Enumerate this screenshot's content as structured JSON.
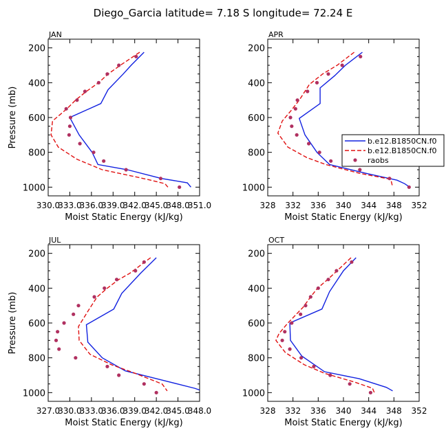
{
  "figure": {
    "title": "Diego_Garcia   latitude= 7.18 S longitude= 72.24 E"
  },
  "legend": {
    "entries": [
      {
        "label": "b.e12.B1850CN.f0",
        "style": "solid",
        "color": "#1020e0"
      },
      {
        "label": "b.e12.B1850CN.f0",
        "style": "dashed",
        "color": "#e01010"
      },
      {
        "label": "raobs",
        "style": "dot",
        "color": "#b03060"
      }
    ]
  },
  "chart_data": [
    {
      "type": "line",
      "panel_label": "JAN",
      "xlabel": "Moist Static Energy (kJ/kg)",
      "ylabel": "Pressure (mb)",
      "xlim": [
        330.0,
        351.0
      ],
      "ylim": [
        1000,
        200
      ],
      "xticks": [
        330.0,
        333.0,
        336.0,
        339.0,
        342.0,
        345.0,
        348.0,
        351.0
      ],
      "xticklabels": [
        "330.0",
        "333.0",
        "336.0",
        "339.0",
        "342.0",
        "345.0",
        "348.0",
        "351.0"
      ],
      "yticks": [
        200,
        400,
        600,
        800,
        1000
      ],
      "series": [
        {
          "name": "b.e12.B1850CN.f0",
          "style": "solid",
          "color": "#1020e0",
          "points": [
            [
              343.3,
              225
            ],
            [
              341.5,
              300
            ],
            [
              340.4,
              350
            ],
            [
              338.3,
              440
            ],
            [
              337.3,
              520
            ],
            [
              333.0,
              600
            ],
            [
              334.3,
              700
            ],
            [
              336.1,
              800
            ],
            [
              336.9,
              870
            ],
            [
              341.0,
              900
            ],
            [
              345.7,
              950
            ],
            [
              349.3,
              975
            ],
            [
              349.8,
              1000
            ]
          ]
        },
        {
          "name": "b.e12.B1850CN.f0",
          "style": "dashed",
          "color": "#e01010",
          "points": [
            [
              342.7,
              225
            ],
            [
              340.0,
              300
            ],
            [
              338.3,
              350
            ],
            [
              337.0,
              400
            ],
            [
              335.3,
              450
            ],
            [
              333.8,
              500
            ],
            [
              332.6,
              550
            ],
            [
              330.6,
              620
            ],
            [
              330.4,
              700
            ],
            [
              331.4,
              770
            ],
            [
              334.0,
              840
            ],
            [
              337.5,
              900
            ],
            [
              341.5,
              935
            ],
            [
              343.7,
              955
            ],
            [
              346.2,
              980
            ],
            [
              346.6,
              1000
            ]
          ]
        },
        {
          "name": "raobs",
          "style": "dot",
          "color": "#b03060",
          "points": [
            [
              342.2,
              250
            ],
            [
              339.8,
              300
            ],
            [
              338.2,
              350
            ],
            [
              337.0,
              400
            ],
            [
              335.1,
              450
            ],
            [
              334.0,
              500
            ],
            [
              332.5,
              550
            ],
            [
              333.1,
              600
            ],
            [
              333.0,
              650
            ],
            [
              332.9,
              700
            ],
            [
              334.4,
              750
            ],
            [
              336.3,
              800
            ],
            [
              337.7,
              850
            ],
            [
              340.8,
              900
            ],
            [
              345.6,
              950
            ],
            [
              348.2,
              1000
            ]
          ]
        }
      ]
    },
    {
      "type": "line",
      "panel_label": "APR",
      "xlabel": "Moist Static Energy (kJ/kg)",
      "ylabel": "",
      "xlim": [
        328,
        352
      ],
      "ylim": [
        1000,
        200
      ],
      "xticks": [
        328,
        332,
        336,
        340,
        344,
        348,
        352
      ],
      "xticklabels": [
        "328",
        "332",
        "336",
        "340",
        "344",
        "348",
        "352"
      ],
      "yticks": [
        200,
        400,
        600,
        800,
        1000
      ],
      "series": [
        {
          "name": "b.e12.B1850CN.f0",
          "style": "solid",
          "color": "#1020e0",
          "points": [
            [
              343.0,
              225
            ],
            [
              340.3,
              300
            ],
            [
              338.6,
              360
            ],
            [
              336.3,
              430
            ],
            [
              336.3,
              520
            ],
            [
              333.0,
              605
            ],
            [
              333.9,
              700
            ],
            [
              335.8,
              800
            ],
            [
              337.8,
              870
            ],
            [
              343.5,
              920
            ],
            [
              348.5,
              960
            ],
            [
              349.7,
              980
            ],
            [
              350.5,
              1000
            ]
          ]
        },
        {
          "name": "b.e12.B1850CN.f0",
          "style": "dashed",
          "color": "#e01010",
          "points": [
            [
              341.7,
              225
            ],
            [
              339.0,
              300
            ],
            [
              336.7,
              350
            ],
            [
              334.6,
              410
            ],
            [
              333.0,
              500
            ],
            [
              331.7,
              560
            ],
            [
              330.3,
              620
            ],
            [
              329.6,
              690
            ],
            [
              331.2,
              770
            ],
            [
              334.2,
              830
            ],
            [
              337.2,
              870
            ],
            [
              342.5,
              920
            ],
            [
              347.5,
              955
            ],
            [
              347.8,
              1000
            ]
          ]
        },
        {
          "name": "raobs",
          "style": "dot",
          "color": "#b03060",
          "points": [
            [
              342.7,
              250
            ],
            [
              339.8,
              300
            ],
            [
              337.6,
              350
            ],
            [
              335.8,
              400
            ],
            [
              334.3,
              450
            ],
            [
              332.7,
              500
            ],
            [
              332.4,
              550
            ],
            [
              331.6,
              600
            ],
            [
              331.8,
              650
            ],
            [
              332.6,
              700
            ],
            [
              334.5,
              750
            ],
            [
              336.2,
              800
            ],
            [
              338.0,
              850
            ],
            [
              342.6,
              900
            ],
            [
              347.3,
              950
            ],
            [
              350.4,
              1000
            ]
          ]
        }
      ]
    },
    {
      "type": "line",
      "panel_label": "JUL",
      "xlabel": "Moist Static Energy (kJ/kg)",
      "ylabel": "Pressure (mb)",
      "xlim": [
        327.0,
        348.0
      ],
      "ylim": [
        1000,
        200
      ],
      "xticks": [
        327.0,
        330.0,
        333.0,
        336.0,
        339.0,
        342.0,
        345.0,
        348.0
      ],
      "xticklabels": [
        "327.0",
        "330.0",
        "333.0",
        "336.0",
        "339.0",
        "342.0",
        "345.0",
        "348.0"
      ],
      "yticks": [
        200,
        400,
        600,
        800,
        1000
      ],
      "series": [
        {
          "name": "b.e12.B1850CN.f0",
          "style": "solid",
          "color": "#1020e0",
          "points": [
            [
              342.0,
              225
            ],
            [
              339.8,
              315
            ],
            [
              337.2,
              430
            ],
            [
              336.1,
              520
            ],
            [
              332.3,
              610
            ],
            [
              332.5,
              710
            ],
            [
              334.5,
              800
            ],
            [
              337.7,
              875
            ],
            [
              342.5,
              925
            ],
            [
              347.3,
              975
            ],
            [
              348.0,
              985
            ]
          ]
        },
        {
          "name": "b.e12.B1850CN.f0",
          "style": "dashed",
          "color": "#e01010",
          "points": [
            [
              341.2,
              225
            ],
            [
              338.3,
              315
            ],
            [
              336.8,
              350
            ],
            [
              335.2,
              400
            ],
            [
              333.8,
              450
            ],
            [
              332.7,
              520
            ],
            [
              331.2,
              620
            ],
            [
              331.3,
              700
            ],
            [
              332.8,
              780
            ],
            [
              335.8,
              840
            ],
            [
              338.8,
              885
            ],
            [
              342.8,
              950
            ],
            [
              343.5,
              990
            ]
          ]
        },
        {
          "name": "raobs",
          "style": "dot",
          "color": "#b03060",
          "points": [
            [
              340.3,
              250
            ],
            [
              339.1,
              300
            ],
            [
              336.5,
              350
            ],
            [
              334.8,
              400
            ],
            [
              333.4,
              450
            ],
            [
              331.2,
              500
            ],
            [
              330.5,
              550
            ],
            [
              329.2,
              600
            ],
            [
              328.3,
              650
            ],
            [
              328.1,
              700
            ],
            [
              328.5,
              750
            ],
            [
              330.8,
              800
            ],
            [
              335.2,
              850
            ],
            [
              336.8,
              900
            ],
            [
              340.3,
              950
            ],
            [
              342.0,
              1000
            ]
          ]
        }
      ]
    },
    {
      "type": "line",
      "panel_label": "OCT",
      "xlabel": "Moist Static Energy (kJ/kg)",
      "ylabel": "",
      "xlim": [
        328,
        352
      ],
      "ylim": [
        1000,
        200
      ],
      "xticks": [
        328,
        332,
        336,
        340,
        344,
        348,
        352
      ],
      "xticklabels": [
        "328",
        "332",
        "336",
        "340",
        "344",
        "348",
        "352"
      ],
      "yticks": [
        200,
        400,
        600,
        800,
        1000
      ],
      "series": [
        {
          "name": "b.e12.B1850CN.f0",
          "style": "solid",
          "color": "#1020e0",
          "points": [
            [
              342.0,
              225
            ],
            [
              340.0,
              300
            ],
            [
              337.8,
              420
            ],
            [
              336.6,
              520
            ],
            [
              331.5,
              600
            ],
            [
              331.6,
              700
            ],
            [
              333.4,
              790
            ],
            [
              337.0,
              880
            ],
            [
              342.5,
              920
            ],
            [
              346.8,
              970
            ],
            [
              347.8,
              990
            ]
          ]
        },
        {
          "name": "b.e12.B1850CN.f0",
          "style": "dashed",
          "color": "#e01010",
          "points": [
            [
              341.2,
              225
            ],
            [
              339.0,
              300
            ],
            [
              337.5,
              350
            ],
            [
              335.9,
              400
            ],
            [
              334.8,
              450
            ],
            [
              333.6,
              510
            ],
            [
              331.2,
              600
            ],
            [
              329.8,
              660
            ],
            [
              329.3,
              700
            ],
            [
              330.8,
              770
            ],
            [
              333.8,
              840
            ],
            [
              337.1,
              890
            ],
            [
              341.8,
              940
            ],
            [
              344.6,
              975
            ],
            [
              344.9,
              1000
            ]
          ]
        },
        {
          "name": "raobs",
          "style": "dot",
          "color": "#b03060",
          "points": [
            [
              341.3,
              250
            ],
            [
              338.9,
              300
            ],
            [
              337.6,
              350
            ],
            [
              336.0,
              400
            ],
            [
              334.8,
              450
            ],
            [
              334.0,
              500
            ],
            [
              333.2,
              550
            ],
            [
              331.8,
              600
            ],
            [
              330.7,
              650
            ],
            [
              330.3,
              700
            ],
            [
              331.5,
              750
            ],
            [
              333.3,
              800
            ],
            [
              335.3,
              850
            ],
            [
              337.9,
              900
            ],
            [
              341.0,
              950
            ],
            [
              344.3,
              1000
            ]
          ]
        }
      ]
    }
  ]
}
